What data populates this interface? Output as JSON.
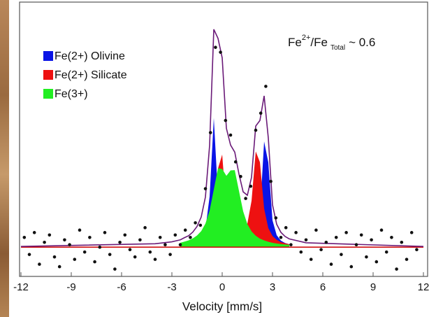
{
  "chart_data": {
    "type": "area",
    "x_label": "Velocity [mm/s]",
    "annotation": {
      "base": "Fe",
      "sup": "2+",
      "mid": "/Fe",
      "sub": "Total",
      "tail": "~ 0.6"
    },
    "xlim": [
      -12,
      12
    ],
    "xticks": [
      -12,
      -9,
      -6,
      -3,
      0,
      3,
      6,
      9,
      12
    ],
    "ylim": [
      -12,
      100
    ],
    "legend": "upper left",
    "x": [
      -2.5,
      -2.25,
      -2,
      -1.75,
      -1.5,
      -1.25,
      -1,
      -0.75,
      -0.5,
      -0.25,
      0,
      0.25,
      0.5,
      0.75,
      1,
      1.25,
      1.5,
      1.75,
      2,
      2.25,
      2.5,
      2.75,
      3,
      3.25,
      3.5,
      3.75,
      4
    ],
    "series": [
      {
        "name": "Fe(2+) Olivine",
        "color": "#0a14e6",
        "values": [
          0.6,
          0.8,
          1.0,
          1.4,
          2.1,
          3.6,
          7.4,
          20.8,
          53,
          21,
          7.6,
          3.9,
          2.5,
          2.0,
          1.8,
          1.8,
          2.2,
          3.2,
          5.7,
          13.6,
          43.4,
          34.8,
          11,
          4.9,
          2.7,
          1.7,
          1.2
        ]
      },
      {
        "name": "Fe(2+) Silicate",
        "color": "#ee1111",
        "values": [
          0.6,
          0.8,
          0.9,
          1.2,
          1.6,
          2.2,
          3.5,
          6.0,
          12.7,
          32.3,
          38.0,
          15.6,
          7.9,
          5.4,
          5.1,
          6.2,
          9.6,
          19,
          39.3,
          34.9,
          15.9,
          7.8,
          4.6,
          3.0,
          2.1,
          1.6,
          1.2
        ]
      },
      {
        "name": "Fe(3+)",
        "color": "#22ee22",
        "values": [
          1.8,
          2.3,
          2.8,
          3.6,
          4.8,
          6.6,
          9.7,
          15.0,
          23.7,
          32.4,
          32.1,
          29.3,
          31.5,
          31.6,
          23.1,
          14.7,
          9.5,
          6.5,
          4.7,
          3.5,
          2.8,
          2.2,
          1.8,
          1.5,
          1.3,
          1.1,
          1.0
        ]
      }
    ],
    "lines": [
      {
        "color": "#d01010",
        "x": [
          -12,
          12
        ],
        "values": [
          0,
          0
        ]
      },
      {
        "color": "#6a1a78",
        "x": [
          -12,
          -4,
          -3,
          -2.5,
          -2.25,
          -2,
          -1.75,
          -1.5,
          -1.25,
          -1,
          -0.75,
          -0.5,
          -0.25,
          0,
          0.25,
          0.5,
          0.75,
          1,
          1.25,
          1.5,
          1.75,
          2,
          2.25,
          2.5,
          2.75,
          3,
          3.25,
          3.5,
          3.75,
          4,
          5,
          12
        ],
        "values": [
          0.3,
          1.4,
          2.2,
          3.0,
          3.9,
          4.7,
          6.2,
          8.5,
          12.4,
          20.6,
          41.8,
          89.4,
          85.7,
          77.7,
          48.8,
          41.9,
          39,
          30,
          22.7,
          21.3,
          28.7,
          49.7,
          52,
          62.1,
          44.8,
          17.4,
          9.4,
          6.1,
          4.4,
          3.4,
          1.8,
          0.3
        ]
      }
    ],
    "points": {
      "color": "#111111",
      "x": [
        -11.8,
        -11.5,
        -11.2,
        -10.9,
        -10.6,
        -10.3,
        -10.0,
        -9.7,
        -9.4,
        -9.1,
        -8.8,
        -8.5,
        -8.2,
        -7.9,
        -7.6,
        -7.3,
        -7.0,
        -6.7,
        -6.4,
        -6.1,
        -5.8,
        -5.5,
        -5.2,
        -4.9,
        -4.6,
        -4.3,
        -4.0,
        -3.7,
        -3.4,
        -3.1,
        -2.8,
        -2.5,
        -2.2,
        -1.9,
        -1.6,
        -1.3,
        -1.0,
        -0.7,
        -0.4,
        -0.1,
        0.2,
        0.5,
        0.8,
        1.1,
        1.4,
        1.7,
        2.0,
        2.3,
        2.6,
        2.9,
        3.2,
        3.5,
        3.8,
        4.1,
        4.4,
        4.7,
        5.0,
        5.3,
        5.6,
        5.9,
        6.2,
        6.5,
        6.8,
        7.1,
        7.4,
        7.7,
        8.0,
        8.3,
        8.6,
        8.9,
        9.2,
        9.5,
        9.8,
        10.1,
        10.4,
        10.7,
        11.0,
        11.3,
        11.6
      ],
      "values": [
        4,
        -3,
        6,
        -7,
        2,
        5,
        -4,
        -8,
        3,
        1,
        -5,
        7,
        -2,
        4,
        -6,
        0,
        6,
        -3,
        -9,
        2,
        5,
        -1,
        -4,
        3,
        8,
        -2,
        -5,
        4,
        1,
        -3,
        5,
        1,
        7,
        4,
        10,
        9,
        24,
        47,
        82,
        80,
        52,
        46,
        35,
        29,
        20,
        25,
        48,
        55,
        66,
        27,
        12,
        4,
        8,
        1,
        6,
        -2,
        3,
        -5,
        7,
        -1,
        2,
        -7,
        4,
        -3,
        6,
        -8,
        1,
        5,
        -4,
        3,
        -6,
        7,
        -2,
        4,
        -9,
        2,
        -5,
        6,
        -1
      ]
    }
  }
}
